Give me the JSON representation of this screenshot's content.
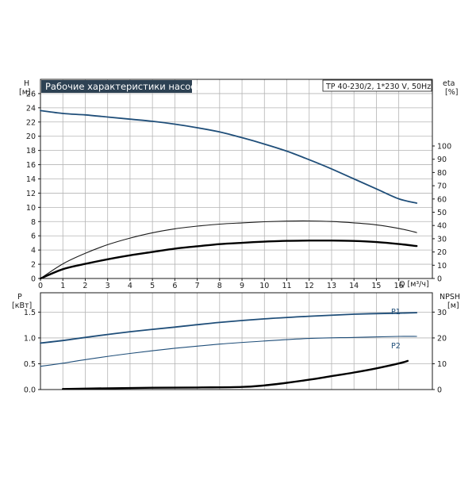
{
  "header": {
    "title": "Рабочие характеристики насоса",
    "model": "TP 40-230/2, 1*230 V, 50Hz"
  },
  "chart_data": [
    {
      "type": "line",
      "panel": "top",
      "title": "Рабочие характеристики насоса",
      "xlabel": "Q [м³/ч]",
      "ylabel": "H [м]",
      "y2label": "eta [%]",
      "xlim": [
        0,
        17.5
      ],
      "ylim": [
        0,
        28
      ],
      "y2lim": [
        0,
        100
      ],
      "xticks": [
        "0",
        "1",
        "2",
        "3",
        "4",
        "5",
        "6",
        "7",
        "8",
        "9",
        "10",
        "11",
        "12",
        "13",
        "14",
        "15",
        "16"
      ],
      "yticks": [
        "0",
        "2",
        "4",
        "6",
        "8",
        "10",
        "12",
        "14",
        "16",
        "18",
        "20",
        "22",
        "24",
        "26"
      ],
      "y2ticks": [
        "0",
        "10",
        "20",
        "30",
        "40",
        "50",
        "60",
        "70",
        "80",
        "90",
        "100"
      ],
      "grid": true,
      "series": [
        {
          "id": "head",
          "axis": "left",
          "color": "#1f4e79",
          "x": [
            0,
            1,
            2,
            3,
            4,
            5,
            6,
            7,
            8,
            9,
            10,
            11,
            12,
            13,
            14,
            15,
            16,
            16.8
          ],
          "y": [
            23.6,
            23.2,
            23.0,
            22.7,
            22.4,
            22.1,
            21.7,
            21.2,
            20.6,
            19.8,
            18.9,
            17.9,
            16.7,
            15.4,
            14.0,
            12.6,
            11.2,
            10.6
          ]
        },
        {
          "id": "efficiency-upper",
          "axis": "right",
          "color": "#1a1a1a",
          "x": [
            0,
            1,
            2,
            3,
            4,
            5,
            6,
            7,
            8,
            9,
            10,
            11,
            12,
            13,
            14,
            15,
            16,
            16.8
          ],
          "y": [
            0,
            11,
            19,
            25.5,
            30.5,
            34.5,
            37.5,
            39.5,
            41,
            42,
            42.8,
            43.3,
            43.4,
            43,
            42,
            40.5,
            37.8,
            34.7
          ]
        },
        {
          "id": "efficiency",
          "axis": "right",
          "color": "#000000",
          "x": [
            0,
            1,
            2,
            3,
            4,
            5,
            6,
            7,
            8,
            9,
            10,
            11,
            12,
            13,
            14,
            15,
            16,
            16.8
          ],
          "y": [
            0,
            7,
            11,
            14.5,
            17.5,
            20,
            22.5,
            24.3,
            25.9,
            26.9,
            27.8,
            28.4,
            28.6,
            28.6,
            28.3,
            27.5,
            26,
            24.5
          ]
        }
      ]
    },
    {
      "type": "line",
      "panel": "bottom",
      "xlabel": "Q [м³/ч]",
      "ylabel": "P [кВт]",
      "y2label": "NPSH [м]",
      "xlim": [
        0,
        17.5
      ],
      "ylim": [
        0,
        1.875
      ],
      "y2lim": [
        0,
        37.5
      ],
      "yticks": [
        "0.0",
        "0.5",
        "1.0",
        "1.5"
      ],
      "y2ticks": [
        "0",
        "10",
        "20",
        "30"
      ],
      "grid": true,
      "series": [
        {
          "id": "P1",
          "name": "P1",
          "axis": "left",
          "color": "#1f4e79",
          "x": [
            0,
            1,
            2,
            4,
            6,
            8,
            10,
            12,
            14,
            16,
            16.8
          ],
          "y": [
            0.9,
            0.95,
            1.01,
            1.12,
            1.21,
            1.3,
            1.37,
            1.42,
            1.46,
            1.48,
            1.49
          ]
        },
        {
          "id": "P2",
          "name": "P2",
          "axis": "left",
          "color": "#1f4e79",
          "x": [
            0,
            1,
            2,
            4,
            6,
            8,
            10,
            12,
            14,
            16,
            16.8
          ],
          "y": [
            0.45,
            0.51,
            0.58,
            0.7,
            0.8,
            0.88,
            0.94,
            0.99,
            1.01,
            1.03,
            1.03
          ]
        },
        {
          "id": "NPSH",
          "axis": "right",
          "color": "#000000",
          "x": [
            1,
            3,
            5,
            7,
            9,
            10,
            11,
            12,
            13,
            14,
            15,
            16,
            16.4
          ],
          "y": [
            0.2,
            0.5,
            0.7,
            0.8,
            1.0,
            1.6,
            2.6,
            3.8,
            5.2,
            6.6,
            8.2,
            10.1,
            11.1
          ]
        }
      ],
      "labels": {
        "p1": "P1",
        "p2": "P2"
      }
    }
  ],
  "axis_text": {
    "h_name": "H",
    "h_unit": "[м]",
    "eta_name": "eta",
    "eta_unit": "[%]",
    "q_label": "Q [м³/ч]",
    "p_name": "P",
    "p_unit": "[кВт]",
    "npsh_name": "NPSH",
    "npsh_unit": "[м]"
  }
}
